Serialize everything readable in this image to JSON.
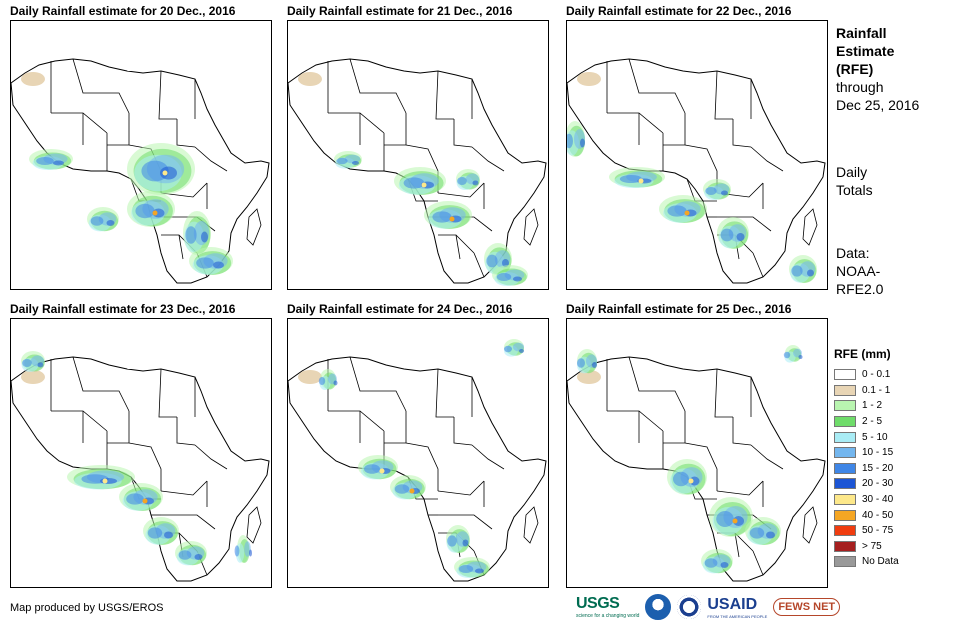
{
  "panels": [
    {
      "title": "Daily Rainfall estimate for 20 Dec., 2016"
    },
    {
      "title": "Daily Rainfall estimate for 21 Dec., 2016"
    },
    {
      "title": "Daily Rainfall estimate for 22 Dec., 2016"
    },
    {
      "title": "Daily Rainfall estimate for 23 Dec., 2016"
    },
    {
      "title": "Daily Rainfall estimate for 24 Dec., 2016"
    },
    {
      "title": "Daily Rainfall estimate for 25 Dec., 2016"
    }
  ],
  "sidebar": {
    "title_line1": "Rainfall",
    "title_line2": "Estimate",
    "title_line3": "(RFE)",
    "through": "through",
    "through_date": "Dec 25, 2016",
    "totals_line1": "Daily",
    "totals_line2": "Totals",
    "data_line1": "Data:",
    "data_line2": "NOAA-",
    "data_line3": "RFE2.0"
  },
  "legend": {
    "title": "RFE (mm)",
    "items": [
      {
        "label": "0 - 0.1",
        "color": "#ffffff"
      },
      {
        "label": "0.1 - 1",
        "color": "#e8d5b5"
      },
      {
        "label": "1 - 2",
        "color": "#b9f5b0"
      },
      {
        "label": "2 - 5",
        "color": "#6fdc6a"
      },
      {
        "label": "5 - 10",
        "color": "#a9ecf5"
      },
      {
        "label": "10 - 15",
        "color": "#73b6ee"
      },
      {
        "label": "15 - 20",
        "color": "#3f86e6"
      },
      {
        "label": "20 - 30",
        "color": "#1c55d4"
      },
      {
        "label": "30 - 40",
        "color": "#fde88a"
      },
      {
        "label": "40 - 50",
        "color": "#f5a623"
      },
      {
        "label": "50 - 75",
        "color": "#f03c0f"
      },
      {
        "label": "> 75",
        "color": "#a51f1f"
      },
      {
        "label": "No Data",
        "color": "#999999"
      }
    ]
  },
  "credit": "Map produced by USGS/EROS",
  "logos": {
    "usgs": "USGS",
    "usgs_tagline": "science for a changing world",
    "usaid": "USAID",
    "usaid_tagline": "FROM THE AMERICAN PEOPLE",
    "fews": "FEWS NET"
  }
}
